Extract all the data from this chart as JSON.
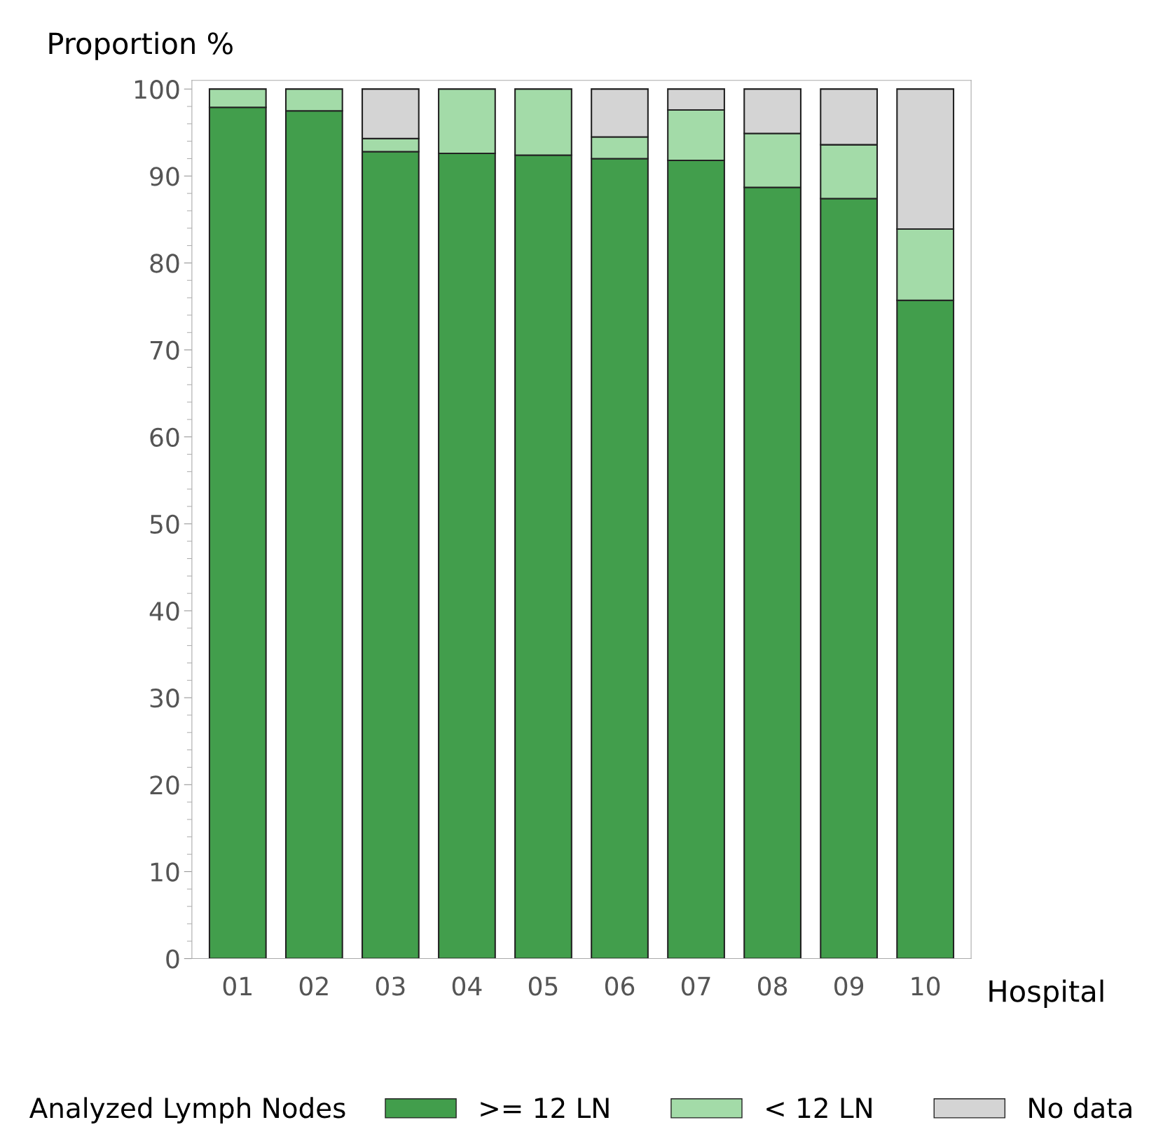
{
  "chart_data": {
    "type": "bar",
    "stacked": true,
    "ylabel": "Proportion %",
    "xlabel": "Hospital",
    "legend_title": "Analyzed Lymph Nodes",
    "categories": [
      "01",
      "02",
      "03",
      "04",
      "05",
      "06",
      "07",
      "08",
      "09",
      "10"
    ],
    "series": [
      {
        "name": ">= 12 LN",
        "color": "#429e4c",
        "values": [
          97.9,
          97.5,
          92.8,
          92.6,
          92.4,
          92.0,
          91.8,
          88.7,
          87.4,
          75.7
        ]
      },
      {
        "name": "< 12 LN",
        "color": "#a3dba8",
        "values": [
          2.1,
          2.5,
          1.5,
          7.4,
          7.6,
          2.5,
          5.8,
          6.2,
          6.2,
          8.2
        ]
      },
      {
        "name": "No data",
        "color": "#d4d4d4",
        "values": [
          null,
          null,
          5.7,
          null,
          null,
          5.5,
          2.4,
          5.1,
          6.4,
          16.1
        ]
      }
    ],
    "ylim": [
      0,
      101
    ],
    "yticks": [
      0,
      10,
      20,
      30,
      40,
      50,
      60,
      70,
      80,
      90,
      100
    ],
    "grid": false,
    "legend": "bottom"
  }
}
